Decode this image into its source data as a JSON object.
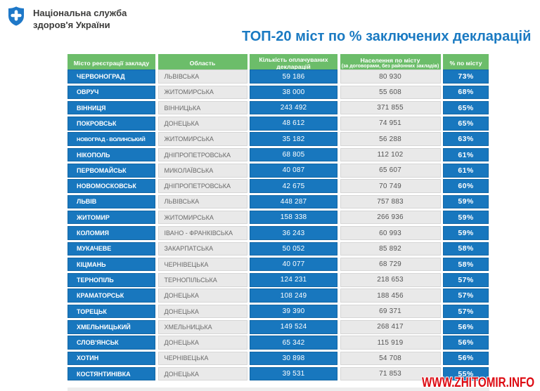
{
  "logo": {
    "line1": "Національна служба",
    "line2": "здоров'я України"
  },
  "title": "ТОП-20 міст по % заключених декларацій",
  "watermark": "WWW.ZHITOMIR.INFO",
  "colors": {
    "cell_blue": "#1877be",
    "header_green": "#6cbd6a",
    "cell_gray": "#e9e9e9",
    "title_blue": "#1a7ac2",
    "watermark_red": "#dd0a12",
    "logo_blue": "#1e78c8"
  },
  "chart_data": {
    "type": "table",
    "columns": [
      "Місто реєстрації закладу",
      "Область",
      "Кількість оплачуваних декларацій",
      "Населення по місту",
      "% по місту"
    ],
    "column4_subtitle": "(за договорами, без районних закладів)",
    "rows": [
      [
        "ЧЕРВОНОГРАД",
        "ЛЬВІВСЬКА",
        "59 186",
        "80 930",
        "73%"
      ],
      [
        "ОВРУЧ",
        "ЖИТОМИРСЬКА",
        "38 000",
        "55 608",
        "68%"
      ],
      [
        "ВІННИЦЯ",
        "ВІННИЦЬКА",
        "243 492",
        "371 855",
        "65%"
      ],
      [
        "ПОКРОВСЬК",
        "ДОНЕЦЬКА",
        "48 612",
        "74 951",
        "65%"
      ],
      [
        "НОВОГРАД - ВОЛИНСЬКИЙ",
        "ЖИТОМИРСЬКА",
        "35 182",
        "56 288",
        "63%"
      ],
      [
        "НІКОПОЛЬ",
        "ДНІПРОПЕТРОВСЬКА",
        "68 805",
        "112 102",
        "61%"
      ],
      [
        "ПЕРВОМАЙСЬК",
        "МИКОЛАЇВСЬКА",
        "40 087",
        "65 607",
        "61%"
      ],
      [
        "НОВОМОСКОВСЬК",
        "ДНІПРОПЕТРОВСЬКА",
        "42 675",
        "70 749",
        "60%"
      ],
      [
        "ЛЬВІВ",
        "ЛЬВІВСЬКА",
        "448 287",
        "757 883",
        "59%"
      ],
      [
        "ЖИТОМИР",
        "ЖИТОМИРСЬКА",
        "158 338",
        "266 936",
        "59%"
      ],
      [
        "КОЛОМИЯ",
        "ІВАНО - ФРАНКІВСЬКА",
        "36 243",
        "60 993",
        "59%"
      ],
      [
        "МУКАЧЕВЕ",
        "ЗАКАРПАТСЬКА",
        "50 052",
        "85 892",
        "58%"
      ],
      [
        "КІЦМАНЬ",
        "ЧЕРНІВЕЦЬКА",
        "40 077",
        "68 729",
        "58%"
      ],
      [
        "ТЕРНОПІЛЬ",
        "ТЕРНОПІЛЬСЬКА",
        "124 231",
        "218 653",
        "57%"
      ],
      [
        "КРАМАТОРСЬК",
        "ДОНЕЦЬКА",
        "108 249",
        "188 456",
        "57%"
      ],
      [
        "ТОРЕЦЬК",
        "ДОНЕЦЬКА",
        "39 390",
        "69 371",
        "57%"
      ],
      [
        "ХМЕЛЬНИЦЬКИЙ",
        "ХМЕЛЬНИЦЬКА",
        "149 524",
        "268 417",
        "56%"
      ],
      [
        "СЛОВ'ЯНСЬК",
        "ДОНЕЦЬКА",
        "65 342",
        "115 919",
        "56%"
      ],
      [
        "ХОТИН",
        "ЧЕРНІВЕЦЬКА",
        "30 898",
        "54 708",
        "56%"
      ],
      [
        "КОСТЯНТИНІВКА",
        "ДОНЕЦЬКА",
        "39 531",
        "71 853",
        "55%"
      ]
    ]
  }
}
